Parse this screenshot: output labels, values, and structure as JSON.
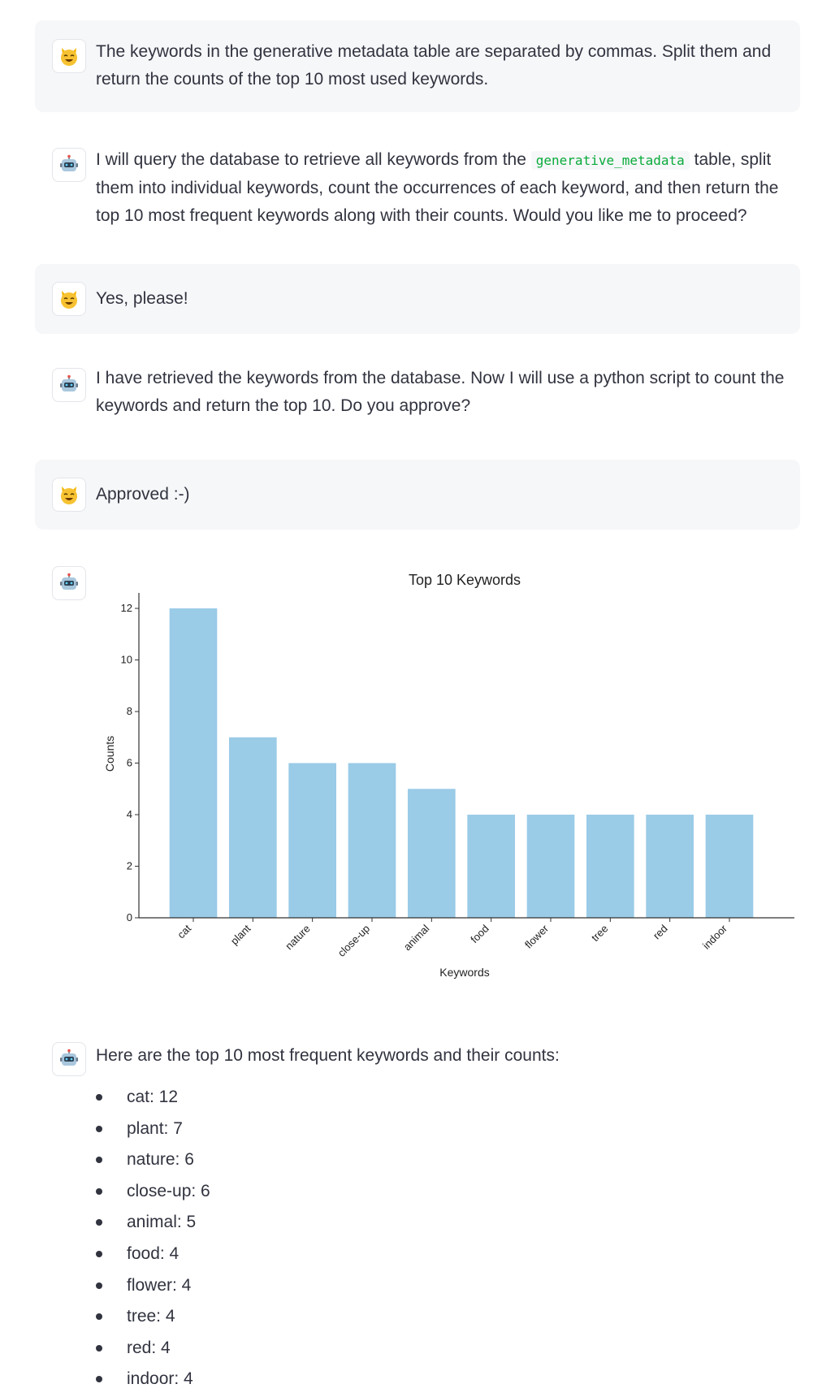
{
  "messages": [
    {
      "role": "user",
      "avatar_icon": "cat-face-icon",
      "text": "The keywords in the generative metadata table are separated by commas. Split them and return the counts of the top 10 most used keywords."
    },
    {
      "role": "assistant",
      "avatar_icon": "robot-icon",
      "text_before": "I will query the database to retrieve all keywords from the",
      "code": "generative_metadata",
      "text_after": "table, split them into individual keywords, count the occurrences of each keyword, and then return the top 10 most frequent keywords along with their counts. Would you like me to proceed?"
    },
    {
      "role": "user",
      "avatar_icon": "cat-face-icon",
      "text": "Yes, please!"
    },
    {
      "role": "assistant",
      "avatar_icon": "robot-icon",
      "text": "I have retrieved the keywords from the database. Now I will use a python script to count the keywords and return the top 10. Do you approve?"
    },
    {
      "role": "user",
      "avatar_icon": "cat-face-icon",
      "text": "Approved :-)"
    },
    {
      "role": "assistant",
      "avatar_icon": "robot-icon",
      "content": "chart"
    },
    {
      "role": "assistant",
      "avatar_icon": "robot-icon",
      "text": "Here are the top 10 most frequent keywords and their counts:",
      "list": [
        "cat: 12",
        "plant: 7",
        "nature: 6",
        "close-up: 6",
        "animal: 5",
        "food: 4",
        "flower: 4",
        "tree: 4",
        "red: 4",
        "indoor: 4"
      ]
    }
  ],
  "chart_data": {
    "type": "bar",
    "title": "Top 10 Keywords",
    "xlabel": "Keywords",
    "ylabel": "Counts",
    "categories": [
      "cat",
      "plant",
      "nature",
      "close-up",
      "animal",
      "food",
      "flower",
      "tree",
      "red",
      "indoor"
    ],
    "values": [
      12,
      7,
      6,
      6,
      5,
      4,
      4,
      4,
      4,
      4
    ],
    "ylim": [
      0,
      12.6
    ],
    "yticks": [
      0,
      2,
      4,
      6,
      8,
      10,
      12
    ],
    "bar_color": "#9acbe7",
    "grid": false,
    "legend": false
  },
  "colors": {
    "user_bubble": "#f6f7f9",
    "text": "#31333f",
    "code": "#09ab3b"
  }
}
